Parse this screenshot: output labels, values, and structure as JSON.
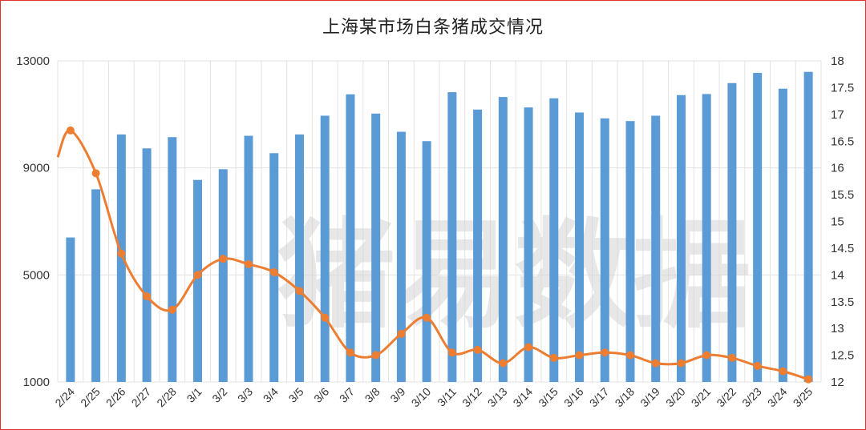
{
  "chart_data": {
    "type": "bar+line",
    "title": "上海某市场白条猪成交情况",
    "watermark": "猪易数据",
    "categories": [
      "2/24",
      "2/25",
      "2/26",
      "2/27",
      "2/28",
      "3/1",
      "3/2",
      "3/3",
      "3/4",
      "3/5",
      "3/6",
      "3/7",
      "3/8",
      "3/9",
      "3/10",
      "3/11",
      "3/12",
      "3/13",
      "3/14",
      "3/15",
      "3/16",
      "3/17",
      "3/18",
      "3/19",
      "3/20",
      "3/21",
      "3/22",
      "3/23",
      "3/24",
      "3/25"
    ],
    "series": [
      {
        "type": "bar",
        "axis": "left",
        "color": "#5b9bd5",
        "values": [
          6400,
          8200,
          10250,
          9730,
          10150,
          8550,
          8950,
          10200,
          9550,
          10250,
          10950,
          11750,
          11030,
          10350,
          10000,
          11830,
          11180,
          11650,
          11260,
          11600,
          11070,
          10850,
          10750,
          10950,
          11720,
          11760,
          12170,
          12550,
          11960,
          12590
        ]
      },
      {
        "type": "line",
        "axis": "right",
        "color": "#ed7d31",
        "values": [
          16.7,
          15.9,
          14.4,
          13.6,
          13.35,
          14.0,
          14.3,
          14.2,
          14.05,
          13.7,
          13.2,
          12.55,
          12.5,
          12.9,
          13.2,
          12.55,
          12.6,
          12.35,
          12.65,
          12.45,
          12.5,
          12.55,
          12.5,
          12.35,
          12.35,
          12.5,
          12.45,
          12.3,
          12.2,
          12.05
        ]
      }
    ],
    "y_left": {
      "min": 1000,
      "max": 13000,
      "ticks": [
        "1000",
        "5000",
        "9000",
        "13000"
      ]
    },
    "y_right": {
      "min": 12,
      "max": 18,
      "ticks": [
        "12",
        "12.5",
        "13",
        "13.5",
        "14",
        "14.5",
        "15",
        "15.5",
        "16",
        "16.5",
        "17",
        "17.5",
        "18"
      ]
    },
    "grid": {
      "vertical": true,
      "horizontal": true
    }
  }
}
